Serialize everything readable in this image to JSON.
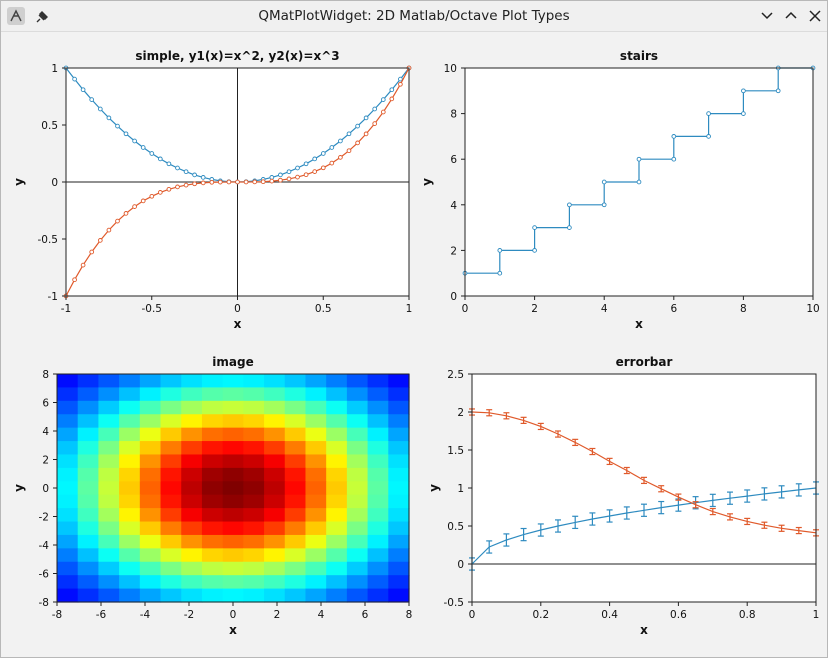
{
  "window": {
    "title": "QMatPlotWidget: 2D Matlab/Octave Plot Types",
    "buttons": [
      "minimize",
      "maximize",
      "close"
    ]
  },
  "icons": [
    "app-icon",
    "pin-icon",
    "chevron-down-icon",
    "chevron-up-icon",
    "close-icon"
  ],
  "colors": {
    "series1": "#2e8bc0",
    "series2": "#e05a2b",
    "axis": "#000000",
    "background": "#f2f2f2"
  },
  "chart_data": [
    {
      "type": "line",
      "title": "simple, y1(x)=x^2, y2(x)=x^3",
      "xlabel": "x",
      "ylabel": "y",
      "xlim": [
        -1,
        1
      ],
      "ylim": [
        -1,
        1
      ],
      "xticks": [
        "-1",
        "-0.5",
        "0",
        "0.5",
        "1"
      ],
      "yticks": [
        "-1",
        "-0.5",
        "0",
        "0.5",
        "1"
      ],
      "zero_lines": true,
      "series": [
        {
          "color": "#2e8bc0",
          "x": [
            -1,
            -0.95,
            -0.9,
            -0.85,
            -0.8,
            -0.75,
            -0.7,
            -0.65,
            -0.6,
            -0.55,
            -0.5,
            -0.45,
            -0.4,
            -0.35,
            -0.3,
            -0.25,
            -0.2,
            -0.15,
            -0.1,
            -0.05,
            0,
            0.05,
            0.1,
            0.15,
            0.2,
            0.25,
            0.3,
            0.35,
            0.4,
            0.45,
            0.5,
            0.55,
            0.6,
            0.65,
            0.7,
            0.75,
            0.8,
            0.85,
            0.9,
            0.95,
            1
          ],
          "y": [
            1,
            0.9025,
            0.81,
            0.7225,
            0.64,
            0.5625,
            0.49,
            0.4225,
            0.36,
            0.3025,
            0.25,
            0.2025,
            0.16,
            0.1225,
            0.09,
            0.0625,
            0.04,
            0.0225,
            0.01,
            0.0025,
            0,
            0.0025,
            0.01,
            0.0225,
            0.04,
            0.0625,
            0.09,
            0.1225,
            0.16,
            0.2025,
            0.25,
            0.3025,
            0.36,
            0.4225,
            0.49,
            0.5625,
            0.64,
            0.7225,
            0.81,
            0.9025,
            1
          ]
        },
        {
          "color": "#e05a2b",
          "x": [
            -1,
            -0.95,
            -0.9,
            -0.85,
            -0.8,
            -0.75,
            -0.7,
            -0.65,
            -0.6,
            -0.55,
            -0.5,
            -0.45,
            -0.4,
            -0.35,
            -0.3,
            -0.25,
            -0.2,
            -0.15,
            -0.1,
            -0.05,
            0,
            0.05,
            0.1,
            0.15,
            0.2,
            0.25,
            0.3,
            0.35,
            0.4,
            0.45,
            0.5,
            0.55,
            0.6,
            0.65,
            0.7,
            0.75,
            0.8,
            0.85,
            0.9,
            0.95,
            1
          ],
          "y": [
            -1,
            -0.857,
            -0.729,
            -0.614,
            -0.512,
            -0.422,
            -0.343,
            -0.275,
            -0.216,
            -0.166,
            -0.125,
            -0.091,
            -0.064,
            -0.043,
            -0.027,
            -0.016,
            -0.008,
            -0.003,
            -0.001,
            0,
            0,
            0,
            0.001,
            0.003,
            0.008,
            0.016,
            0.027,
            0.043,
            0.064,
            0.091,
            0.125,
            0.166,
            0.216,
            0.275,
            0.343,
            0.422,
            0.512,
            0.614,
            0.729,
            0.857,
            1
          ]
        }
      ]
    },
    {
      "type": "line",
      "title": "stairs",
      "xlabel": "x",
      "ylabel": "y",
      "xlim": [
        0,
        10
      ],
      "ylim": [
        0,
        10
      ],
      "xticks": [
        "0",
        "2",
        "4",
        "6",
        "8",
        "10"
      ],
      "yticks": [
        "0",
        "2",
        "4",
        "6",
        "8",
        "10"
      ],
      "stairs": true,
      "series": [
        {
          "color": "#2e8bc0",
          "x": [
            0,
            1,
            2,
            3,
            4,
            5,
            6,
            7,
            8,
            9
          ],
          "y": [
            1,
            2,
            3,
            4,
            5,
            6,
            7,
            8,
            9,
            10
          ]
        }
      ]
    },
    {
      "type": "heatmap",
      "title": "image",
      "xlabel": "x",
      "ylabel": "y",
      "xlim": [
        -8,
        8
      ],
      "ylim": [
        -8,
        8
      ],
      "xticks": [
        "-8",
        "-6",
        "-4",
        "-2",
        "0",
        "2",
        "4",
        "6",
        "8"
      ],
      "yticks": [
        "-8",
        "-6",
        "-4",
        "-2",
        "0",
        "2",
        "4",
        "6",
        "8"
      ],
      "grid_size": 17,
      "function": "value = exp(-(x^2+y^2)/64) on integer grid x,y in [-8,8]",
      "colormap": "jet"
    },
    {
      "type": "line",
      "title": "errorbar",
      "xlabel": "x",
      "ylabel": "y",
      "xlim": [
        0,
        1
      ],
      "ylim": [
        -0.5,
        2.5
      ],
      "xticks": [
        "0",
        "0.2",
        "0.4",
        "0.6",
        "0.8",
        "1"
      ],
      "yticks": [
        "-0.5",
        "0",
        "0.5",
        "1",
        "1.5",
        "2",
        "2.5"
      ],
      "zero_lines": true,
      "series": [
        {
          "color": "#2e8bc0",
          "x": [
            0,
            0.05,
            0.1,
            0.15,
            0.2,
            0.25,
            0.3,
            0.35,
            0.4,
            0.45,
            0.5,
            0.55,
            0.6,
            0.65,
            0.7,
            0.75,
            0.8,
            0.85,
            0.9,
            0.95,
            1
          ],
          "y": [
            0,
            0.224,
            0.316,
            0.387,
            0.447,
            0.5,
            0.548,
            0.592,
            0.632,
            0.671,
            0.707,
            0.742,
            0.775,
            0.806,
            0.837,
            0.866,
            0.894,
            0.922,
            0.949,
            0.975,
            1
          ],
          "err": 0.08
        },
        {
          "color": "#e05a2b",
          "x": [
            0,
            0.05,
            0.1,
            0.15,
            0.2,
            0.25,
            0.3,
            0.35,
            0.4,
            0.45,
            0.5,
            0.55,
            0.6,
            0.65,
            0.7,
            0.75,
            0.8,
            0.85,
            0.9,
            0.95,
            1
          ],
          "y": [
            2,
            1.99,
            1.95,
            1.89,
            1.81,
            1.71,
            1.6,
            1.48,
            1.35,
            1.23,
            1.1,
            0.99,
            0.88,
            0.78,
            0.69,
            0.62,
            0.56,
            0.51,
            0.47,
            0.44,
            0.41
          ],
          "err": 0.04
        }
      ]
    }
  ]
}
